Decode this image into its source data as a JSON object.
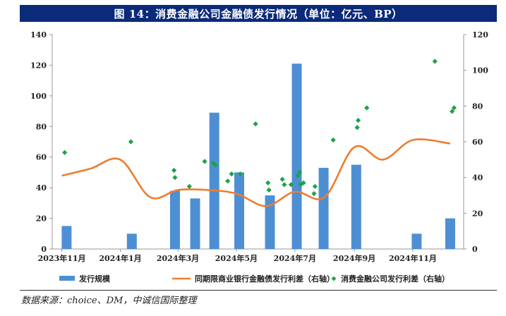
{
  "title": "图 14：消费金融公司金融债发行情况（单位：亿元、BP）",
  "source": "数据来源：choice、DM，中诚信国际整理",
  "colors": {
    "bar": "#4e8fd4",
    "line": "#ed7d31",
    "scatter": "#1aa34a",
    "title_bg": "#0b2a7a"
  },
  "chart_data": {
    "type": "bar",
    "title": "图 14：消费金融公司金融债发行情况（单位：亿元、BP）",
    "x_ticks": [
      "2023年11月",
      "2024年1月",
      "2024年3月",
      "2024年5月",
      "2024年7月",
      "2024年9月",
      "2024年11月"
    ],
    "y_left": {
      "lim": [
        0,
        140
      ],
      "ticks": [
        0,
        20,
        40,
        60,
        80,
        100,
        120,
        140
      ]
    },
    "y_right": {
      "lim": [
        0,
        120
      ],
      "ticks": [
        0,
        20,
        40,
        60,
        80,
        100,
        120
      ]
    },
    "grid": false,
    "legend_position": "bottom",
    "series": [
      {
        "name": "发行规模",
        "type": "bar",
        "axis": "left",
        "points": [
          {
            "x": "2023-11-06",
            "y": 15
          },
          {
            "x": "2024-01-13",
            "y": 10
          },
          {
            "x": "2024-02-27",
            "y": 38
          },
          {
            "x": "2024-03-19",
            "y": 33
          },
          {
            "x": "2024-04-08",
            "y": 89
          },
          {
            "x": "2024-05-04",
            "y": 50
          },
          {
            "x": "2024-06-05",
            "y": 35
          },
          {
            "x": "2024-07-03",
            "y": 121
          },
          {
            "x": "2024-07-31",
            "y": 53
          },
          {
            "x": "2024-09-03",
            "y": 55
          },
          {
            "x": "2024-11-05",
            "y": 10
          },
          {
            "x": "2024-12-10",
            "y": 20
          }
        ]
      },
      {
        "name": "同期限商业银行金融债发行利差（右轴）",
        "type": "line",
        "axis": "right",
        "points": [
          {
            "x": "2023-11-01",
            "y": 41
          },
          {
            "x": "2023-12-01",
            "y": 45
          },
          {
            "x": "2024-01-01",
            "y": 50
          },
          {
            "x": "2024-02-01",
            "y": 29
          },
          {
            "x": "2024-03-01",
            "y": 33
          },
          {
            "x": "2024-04-01",
            "y": 33
          },
          {
            "x": "2024-05-01",
            "y": 31
          },
          {
            "x": "2024-06-01",
            "y": 24
          },
          {
            "x": "2024-07-01",
            "y": 32
          },
          {
            "x": "2024-08-01",
            "y": 29
          },
          {
            "x": "2024-09-01",
            "y": 57
          },
          {
            "x": "2024-10-01",
            "y": 50
          },
          {
            "x": "2024-11-01",
            "y": 61
          },
          {
            "x": "2024-12-10",
            "y": 59
          }
        ]
      },
      {
        "name": "消费金融公司发行利差（右轴）",
        "type": "scatter",
        "axis": "right",
        "points": [
          {
            "x": "2023-11-04",
            "y": 54
          },
          {
            "x": "2024-01-12",
            "y": 60
          },
          {
            "x": "2024-02-26",
            "y": 44
          },
          {
            "x": "2024-02-27",
            "y": 40
          },
          {
            "x": "2024-03-13",
            "y": 35
          },
          {
            "x": "2024-03-29",
            "y": 49
          },
          {
            "x": "2024-04-07",
            "y": 48
          },
          {
            "x": "2024-04-09",
            "y": 47
          },
          {
            "x": "2024-04-22",
            "y": 38
          },
          {
            "x": "2024-04-26",
            "y": 42
          },
          {
            "x": "2024-05-05",
            "y": 42
          },
          {
            "x": "2024-05-21",
            "y": 70
          },
          {
            "x": "2024-06-03",
            "y": 37
          },
          {
            "x": "2024-06-04",
            "y": 33
          },
          {
            "x": "2024-06-18",
            "y": 39
          },
          {
            "x": "2024-06-20",
            "y": 36
          },
          {
            "x": "2024-06-27",
            "y": 36
          },
          {
            "x": "2024-07-06",
            "y": 43
          },
          {
            "x": "2024-07-04",
            "y": 41
          },
          {
            "x": "2024-07-07",
            "y": 36
          },
          {
            "x": "2024-07-10",
            "y": 37
          },
          {
            "x": "2024-07-22",
            "y": 35
          },
          {
            "x": "2024-07-21",
            "y": 31
          },
          {
            "x": "2024-08-10",
            "y": 61
          },
          {
            "x": "2024-09-04",
            "y": 68
          },
          {
            "x": "2024-09-05",
            "y": 72
          },
          {
            "x": "2024-09-14",
            "y": 79
          },
          {
            "x": "2024-11-24",
            "y": 105
          },
          {
            "x": "2024-12-14",
            "y": 79
          },
          {
            "x": "2024-12-12",
            "y": 77
          }
        ]
      }
    ]
  }
}
